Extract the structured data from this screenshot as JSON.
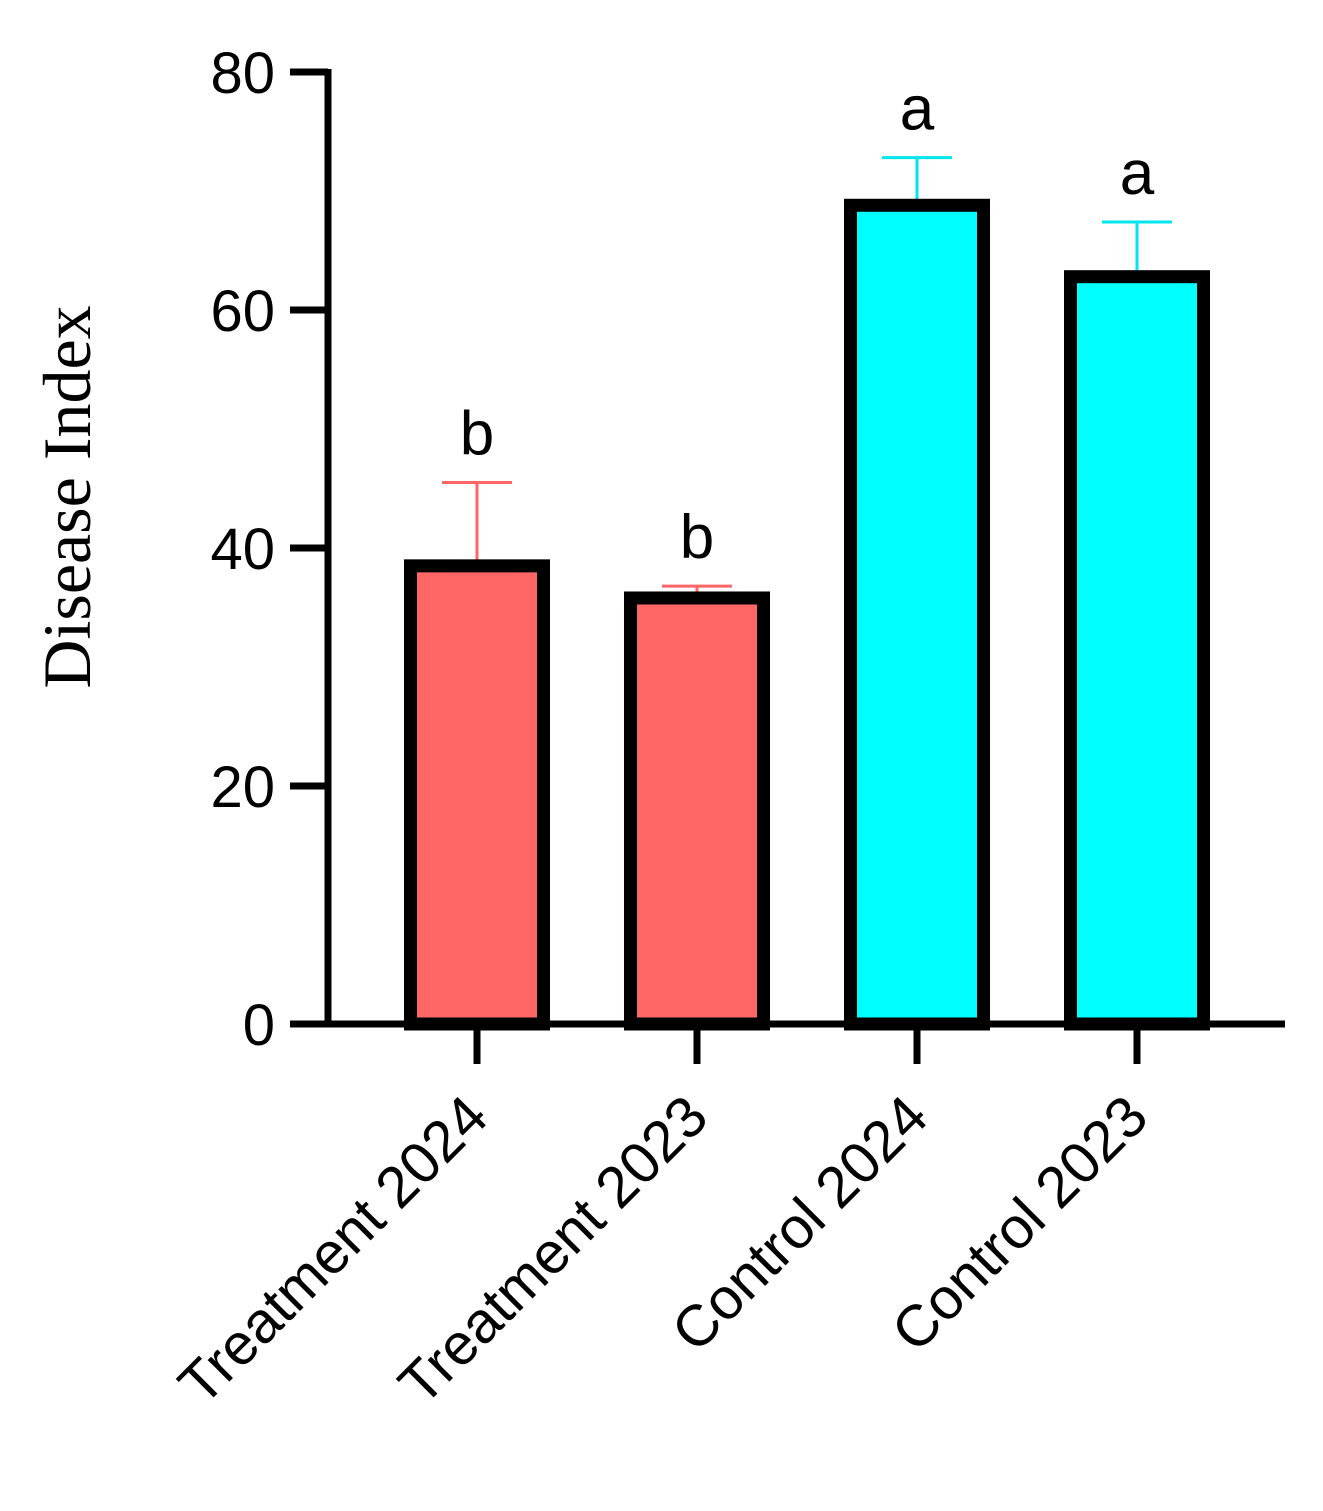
{
  "chart_data": {
    "type": "bar",
    "title": "",
    "xlabel": "",
    "ylabel": "Disease Index",
    "ylim": [
      0,
      80
    ],
    "yticks": [
      0,
      20,
      40,
      60,
      80
    ],
    "grid": false,
    "categories": [
      "Treatment 2024",
      "Treatment 2023",
      "Control 2024",
      "Control 2023"
    ],
    "values": [
      38.5,
      35.8,
      68.8,
      62.8
    ],
    "errors": [
      7.0,
      1.0,
      4.0,
      4.6
    ],
    "significance": [
      "b",
      "b",
      "a",
      "a"
    ],
    "colors": [
      "#FF6666",
      "#FF6666",
      "#00FFFF",
      "#00FFFF"
    ],
    "error_colors": [
      "#FF6666",
      "#FF6666",
      "#00E5EE",
      "#00E5EE"
    ],
    "outline_color": "#000000"
  }
}
